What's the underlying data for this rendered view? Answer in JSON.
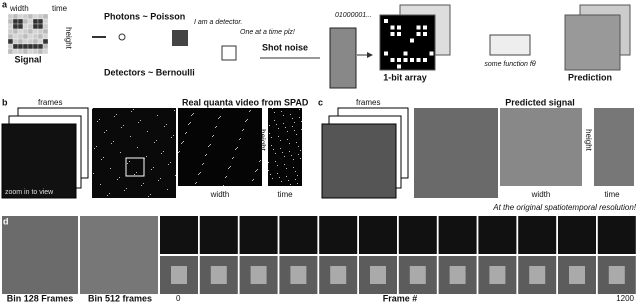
{
  "panel_a": {
    "label": "a",
    "signal": {
      "width": "width",
      "time": "time",
      "height": "height",
      "caption": "Signal"
    },
    "photons": "Photons ~ Poisson",
    "detector_quote": "I am a detector.",
    "one_at_a_time": "One at a time plz!",
    "shot_noise": "Shot noise",
    "bits": "01000001...",
    "detectors": "Detectors ~ Bernoulli",
    "array_caption": "1-bit array",
    "function_caption": "some function fθ",
    "prediction": "Prediction"
  },
  "panel_b": {
    "label": "b",
    "frames": "frames",
    "title": "Real quanta video from SPAD",
    "height": "height",
    "zoom": "zoom in to view",
    "width": "width",
    "time": "time"
  },
  "panel_c": {
    "label": "c",
    "frames": "frames",
    "title": "Predicted signal",
    "height": "height",
    "width": "width",
    "time": "time",
    "note": "At the original spatiotemporal resolution!"
  },
  "panel_d": {
    "label": "d",
    "bin128": "Bin 128 Frames",
    "bin512": "Bin 512 frames",
    "start": "0",
    "axis": "Frame #",
    "end": "1200"
  }
}
